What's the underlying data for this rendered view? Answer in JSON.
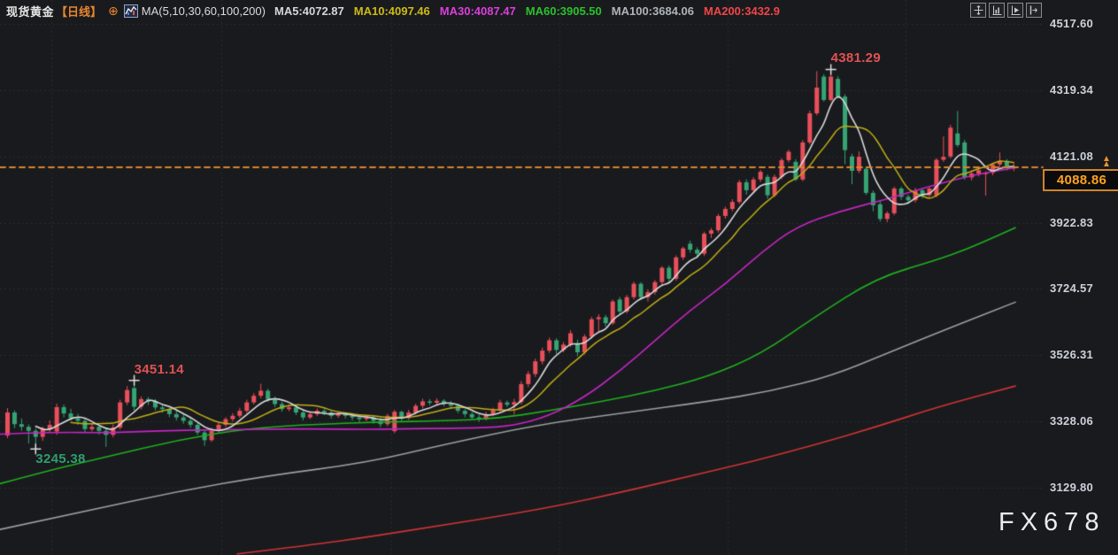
{
  "header": {
    "symbol": "现货黄金",
    "timeframe": "【日线】",
    "ma_group_label": "MA(5,10,30,60,100,200)",
    "ma_values": [
      {
        "label": "MA5:4072.87",
        "color": "#d6d6d6"
      },
      {
        "label": "MA10:4097.46",
        "color": "#cdbb17"
      },
      {
        "label": "MA30:4087.47",
        "color": "#db3fdb"
      },
      {
        "label": "MA60:3905.50",
        "color": "#2bc22b"
      },
      {
        "label": "MA100:3684.06",
        "color": "#aeb4ba"
      },
      {
        "label": "MA200:3432.9",
        "color": "#ef4646"
      }
    ]
  },
  "toolbar": {
    "buttons": [
      "move-tool",
      "axis-scale",
      "axis-auto-fit",
      "collapse-panel"
    ]
  },
  "price_badge": {
    "value": "4088.86"
  },
  "watermark": "FX678",
  "colors": {
    "background": "#191a1e",
    "up": "#e8505a",
    "down": "#36a474",
    "grid": "rgba(255,255,255,0.10)",
    "last_price_line": "#d8842c",
    "cross_marker": "#e0e0e0"
  },
  "chart_data": {
    "type": "candlestick",
    "title": "现货黄金 日线 (Spot Gold, Daily)",
    "y_tick_labels": [
      "4517.60",
      "4319.34",
      "4121.08",
      "3922.83",
      "3724.57",
      "3526.31",
      "3328.06",
      "3129.80"
    ],
    "y_ticks": [
      4517.6,
      4319.34,
      4121.08,
      3922.83,
      3724.57,
      3526.31,
      3328.06,
      3129.8
    ],
    "last_price": 4088.86,
    "layout": {
      "top_tick_y": 27,
      "bottom_tick_y": 551,
      "x0": 6,
      "dx": 7.95,
      "candle_width": 5,
      "plot_right": 1178,
      "x_gridlines": [
        58,
        250,
        442,
        632,
        822,
        1023
      ]
    },
    "markers": [
      {
        "candle_index": 117,
        "price": 4381.29,
        "label": "4381.29",
        "label_color": "#e05252",
        "side": "above"
      },
      {
        "candle_index": 18,
        "price": 3451.14,
        "label": "3451.14",
        "label_color": "#e05252",
        "side": "above"
      },
      {
        "candle_index": 4,
        "price": 3245.38,
        "label": "3245.38",
        "label_color": "#2f9e6e",
        "side": "below"
      }
    ],
    "ma_series": [
      {
        "name": "MA5",
        "window": 5,
        "computed": true,
        "color": "#d9d9d9",
        "width": 1.6
      },
      {
        "name": "MA10",
        "window": 10,
        "computed": true,
        "color": "#bfae14",
        "width": 1.5
      },
      {
        "name": "MA30",
        "color": "#c326c3",
        "width": 1.6,
        "points": [
          [
            0,
            3290
          ],
          [
            60,
            3296
          ],
          [
            120,
            3294
          ],
          [
            180,
            3300
          ],
          [
            240,
            3303
          ],
          [
            300,
            3305
          ],
          [
            360,
            3306
          ],
          [
            420,
            3304
          ],
          [
            480,
            3307
          ],
          [
            540,
            3308
          ],
          [
            580,
            3315
          ],
          [
            620,
            3344
          ],
          [
            660,
            3400
          ],
          [
            700,
            3478
          ],
          [
            740,
            3570
          ],
          [
            780,
            3662
          ],
          [
            820,
            3740
          ],
          [
            860,
            3834
          ],
          [
            900,
            3912
          ],
          [
            950,
            3958
          ],
          [
            1000,
            3992
          ],
          [
            1050,
            4032
          ],
          [
            1100,
            4066
          ],
          [
            1147,
            4087
          ]
        ]
      },
      {
        "name": "MA60",
        "color": "#1eb11e",
        "width": 1.6,
        "points": [
          [
            0,
            3142
          ],
          [
            60,
            3185
          ],
          [
            120,
            3222
          ],
          [
            200,
            3272
          ],
          [
            280,
            3308
          ],
          [
            360,
            3320
          ],
          [
            430,
            3326
          ],
          [
            500,
            3330
          ],
          [
            560,
            3336
          ],
          [
            620,
            3360
          ],
          [
            680,
            3388
          ],
          [
            740,
            3420
          ],
          [
            800,
            3462
          ],
          [
            860,
            3530
          ],
          [
            920,
            3640
          ],
          [
            990,
            3758
          ],
          [
            1060,
            3812
          ],
          [
            1100,
            3852
          ],
          [
            1147,
            3908
          ]
        ]
      },
      {
        "name": "MA100",
        "color": "#9aa0a5",
        "width": 1.6,
        "points": [
          [
            0,
            3005
          ],
          [
            100,
            3062
          ],
          [
            200,
            3118
          ],
          [
            300,
            3165
          ],
          [
            413,
            3204
          ],
          [
            500,
            3258
          ],
          [
            607,
            3318
          ],
          [
            700,
            3352
          ],
          [
            800,
            3388
          ],
          [
            870,
            3418
          ],
          [
            940,
            3465
          ],
          [
            1000,
            3530
          ],
          [
            1070,
            3605
          ],
          [
            1147,
            3685
          ]
        ]
      },
      {
        "name": "MA200",
        "color": "#cf3434",
        "width": 1.6,
        "points": [
          [
            268,
            2932
          ],
          [
            350,
            2958
          ],
          [
            420,
            2984
          ],
          [
            500,
            3018
          ],
          [
            570,
            3047
          ],
          [
            630,
            3076
          ],
          [
            700,
            3115
          ],
          [
            780,
            3165
          ],
          [
            850,
            3208
          ],
          [
            920,
            3258
          ],
          [
            990,
            3312
          ],
          [
            1060,
            3372
          ],
          [
            1147,
            3434
          ]
        ]
      }
    ],
    "candles": [
      [
        3286,
        3368,
        3278,
        3355
      ],
      [
        3355,
        3361,
        3308,
        3320
      ],
      [
        3320,
        3337,
        3300,
        3312
      ],
      [
        3312,
        3319,
        3262,
        3300
      ],
      [
        3300,
        3308,
        3245.38,
        3282
      ],
      [
        3282,
        3313,
        3270,
        3305
      ],
      [
        3305,
        3331,
        3296,
        3318
      ],
      [
        3298,
        3381,
        3288,
        3371
      ],
      [
        3371,
        3379,
        3340,
        3352
      ],
      [
        3352,
        3366,
        3331,
        3338
      ],
      [
        3338,
        3351,
        3318,
        3330
      ],
      [
        3330,
        3337,
        3295,
        3305
      ],
      [
        3305,
        3323,
        3298,
        3312
      ],
      [
        3312,
        3318,
        3289,
        3300
      ],
      [
        3300,
        3307,
        3252,
        3288
      ],
      [
        3288,
        3319,
        3281,
        3310
      ],
      [
        3310,
        3393,
        3304,
        3385
      ],
      [
        3385,
        3434,
        3377,
        3422
      ],
      [
        3428,
        3451.14,
        3360,
        3372
      ],
      [
        3372,
        3403,
        3364,
        3395
      ],
      [
        3395,
        3401,
        3377,
        3388
      ],
      [
        3388,
        3395,
        3361,
        3370
      ],
      [
        3370,
        3381,
        3354,
        3365
      ],
      [
        3365,
        3373,
        3341,
        3350
      ],
      [
        3350,
        3361,
        3331,
        3340
      ],
      [
        3340,
        3349,
        3321,
        3330
      ],
      [
        3330,
        3339,
        3309,
        3318
      ],
      [
        3318,
        3323,
        3287,
        3295
      ],
      [
        3295,
        3301,
        3255,
        3272
      ],
      [
        3272,
        3309,
        3267,
        3300
      ],
      [
        3300,
        3326,
        3294,
        3318
      ],
      [
        3318,
        3341,
        3311,
        3335
      ],
      [
        3335,
        3353,
        3327,
        3345
      ],
      [
        3345,
        3369,
        3339,
        3360
      ],
      [
        3360,
        3393,
        3354,
        3385
      ],
      [
        3385,
        3413,
        3379,
        3405
      ],
      [
        3405,
        3441,
        3397,
        3420
      ],
      [
        3420,
        3426,
        3387,
        3395
      ],
      [
        3395,
        3403,
        3371,
        3380
      ],
      [
        3380,
        3387,
        3357,
        3365
      ],
      [
        3365,
        3379,
        3359,
        3370
      ],
      [
        3370,
        3377,
        3347,
        3355
      ],
      [
        3355,
        3363,
        3331,
        3340
      ],
      [
        3340,
        3357,
        3335,
        3350
      ],
      [
        3350,
        3367,
        3344,
        3360
      ],
      [
        3360,
        3366,
        3347,
        3355
      ],
      [
        3355,
        3361,
        3337,
        3345
      ],
      [
        3345,
        3357,
        3339,
        3350
      ],
      [
        3350,
        3355,
        3337,
        3345
      ],
      [
        3345,
        3351,
        3331,
        3340
      ],
      [
        3340,
        3349,
        3327,
        3335
      ],
      [
        3335,
        3347,
        3329,
        3340
      ],
      [
        3340,
        3345,
        3321,
        3330
      ],
      [
        3330,
        3339,
        3311,
        3320
      ],
      [
        3320,
        3351,
        3314,
        3345
      ],
      [
        3299,
        3363,
        3293,
        3357
      ],
      [
        3357,
        3361,
        3329,
        3338
      ],
      [
        3338,
        3363,
        3333,
        3355
      ],
      [
        3355,
        3381,
        3349,
        3375
      ],
      [
        3375,
        3396,
        3367,
        3388
      ],
      [
        3388,
        3395,
        3377,
        3384
      ],
      [
        3384,
        3397,
        3379,
        3390
      ],
      [
        3390,
        3395,
        3373,
        3380
      ],
      [
        3380,
        3389,
        3367,
        3375
      ],
      [
        3375,
        3381,
        3353,
        3360
      ],
      [
        3360,
        3365,
        3341,
        3350
      ],
      [
        3350,
        3357,
        3333,
        3340
      ],
      [
        3340,
        3349,
        3327,
        3335
      ],
      [
        3335,
        3357,
        3331,
        3350
      ],
      [
        3350,
        3369,
        3345,
        3362
      ],
      [
        3362,
        3393,
        3357,
        3385
      ],
      [
        3385,
        3391,
        3371,
        3378
      ],
      [
        3378,
        3396,
        3349,
        3386
      ],
      [
        3386,
        3449,
        3379,
        3440
      ],
      [
        3440,
        3479,
        3431,
        3470
      ],
      [
        3470,
        3516,
        3461,
        3508
      ],
      [
        3508,
        3549,
        3499,
        3540
      ],
      [
        3540,
        3579,
        3533,
        3571
      ],
      [
        3571,
        3577,
        3529,
        3542
      ],
      [
        3542,
        3566,
        3535,
        3558
      ],
      [
        3558,
        3601,
        3551,
        3592
      ],
      [
        3560,
        3573,
        3523,
        3535
      ],
      [
        3535,
        3589,
        3529,
        3582
      ],
      [
        3582,
        3641,
        3575,
        3634
      ],
      [
        3634,
        3649,
        3597,
        3640
      ],
      [
        3640,
        3647,
        3611,
        3622
      ],
      [
        3622,
        3693,
        3617,
        3687
      ],
      [
        3693,
        3701,
        3649,
        3657
      ],
      [
        3657,
        3707,
        3651,
        3700
      ],
      [
        3700,
        3747,
        3693,
        3740
      ],
      [
        3740,
        3745,
        3691,
        3700
      ],
      [
        3700,
        3723,
        3687,
        3715
      ],
      [
        3715,
        3751,
        3707,
        3745
      ],
      [
        3745,
        3793,
        3737,
        3788
      ],
      [
        3788,
        3795,
        3747,
        3755
      ],
      [
        3755,
        3825,
        3749,
        3819
      ],
      [
        3819,
        3851,
        3811,
        3846
      ],
      [
        3860,
        3869,
        3833,
        3842
      ],
      [
        3842,
        3849,
        3817,
        3830
      ],
      [
        3830,
        3896,
        3823,
        3890
      ],
      [
        3890,
        3907,
        3877,
        3900
      ],
      [
        3900,
        3949,
        3893,
        3943
      ],
      [
        3943,
        3971,
        3935,
        3964
      ],
      [
        3964,
        3993,
        3957,
        3985
      ],
      [
        3985,
        4051,
        3979,
        4044
      ],
      [
        4044,
        4053,
        4007,
        4020
      ],
      [
        4020,
        4059,
        4013,
        4052
      ],
      [
        4052,
        4081,
        4045,
        4075
      ],
      [
        4060,
        4067,
        3994,
        4005
      ],
      [
        4005,
        4067,
        3999,
        4060
      ],
      [
        4060,
        4116,
        4053,
        4110
      ],
      [
        4110,
        4141,
        4103,
        4135
      ],
      [
        4105,
        4113,
        4047,
        4052
      ],
      [
        4052,
        4170,
        4047,
        4163
      ],
      [
        4163,
        4258,
        4157,
        4250
      ],
      [
        4250,
        4376,
        4244,
        4327
      ],
      [
        4360,
        4367,
        4285,
        4290
      ],
      [
        4290,
        4381.29,
        4286,
        4360
      ],
      [
        4353,
        4361,
        4295,
        4300
      ],
      [
        4300,
        4307,
        4098,
        4140
      ],
      [
        4121,
        4129,
        4038,
        4078
      ],
      [
        4078,
        4136,
        4071,
        4120
      ],
      [
        4084,
        4091,
        4006,
        4012
      ],
      [
        4012,
        4019,
        3957,
        3975
      ],
      [
        3978,
        3988,
        3926,
        3934
      ],
      [
        3934,
        3957,
        3924,
        3951
      ],
      [
        3951,
        4031,
        3945,
        4025
      ],
      [
        4025,
        4031,
        3991,
        4000
      ],
      [
        4000,
        4007,
        3979,
        3990
      ],
      [
        3990,
        4027,
        3983,
        4020
      ],
      [
        4020,
        4027,
        3995,
        4005
      ],
      [
        4005,
        4031,
        3999,
        4025
      ],
      [
        4005,
        4116,
        3999,
        4111
      ],
      [
        4111,
        4181,
        4105,
        4120
      ],
      [
        4121,
        4216,
        4115,
        4207
      ],
      [
        4190,
        4257,
        4149,
        4155
      ],
      [
        4163,
        4171,
        4051,
        4058
      ],
      [
        4058,
        4079,
        4049,
        4070
      ],
      [
        4070,
        4087,
        4061,
        4080
      ],
      [
        4068,
        4076,
        4004,
        4072
      ],
      [
        4072,
        4101,
        4065,
        4097
      ],
      [
        4097,
        4133,
        4089,
        4108
      ],
      [
        4108,
        4113,
        4079,
        4090
      ],
      [
        4086,
        4099,
        4077,
        4088.86
      ]
    ]
  }
}
